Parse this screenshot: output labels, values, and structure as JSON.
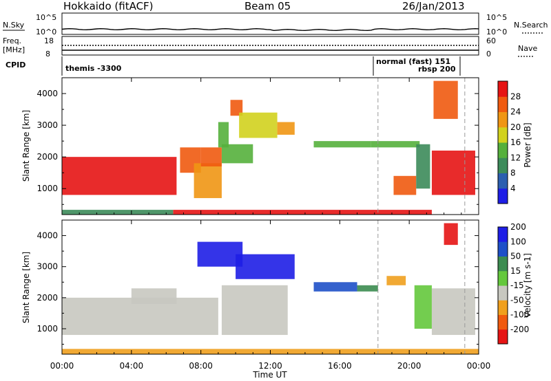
{
  "header": {
    "station": "Hokkaido (fitACF)",
    "beam": "Beam 05",
    "date": "26/Jan/2013"
  },
  "strip": {
    "nsky_label": "N.Sky",
    "nsky_scale_top": "10^5",
    "nsky_scale_bot": "10^0",
    "nsearch_label": "N.Search",
    "nsearch_scale_top": "10^5",
    "nsearch_scale_bot": "10^0",
    "freq_label_1": "Freq.",
    "freq_label_2": "[MHz]",
    "freq_scale_top": "18",
    "freq_scale_bot": "8",
    "nave_label": "Nave",
    "nave_scale_top": "60",
    "nave_scale_bot": "0",
    "cpid_label": "CPID",
    "cpid_mode_1": "themis -3300",
    "cpid_mode_2": "normal (fast) 151",
    "cpid_mode_3": "rbsp 200"
  },
  "x_axis": {
    "label": "Time UT",
    "ticks": [
      "00:00",
      "04:00",
      "08:00",
      "12:00",
      "16:00",
      "20:00",
      "00:00"
    ]
  },
  "colors": {
    "power": [
      "#1e1ee6",
      "#2b5fb0",
      "#3c8b5a",
      "#55b03c",
      "#d2d21e",
      "#f09614",
      "#f05a0f",
      "#e61414"
    ],
    "velocity": [
      "#e61414",
      "#f05a0f",
      "#f0a01e",
      "#c8c8c0",
      "#64c83c",
      "#3c8c50",
      "#1e50c8",
      "#1e1ee6"
    ]
  },
  "chart_data": [
    {
      "type": "heatmap",
      "title": "",
      "xlabel": "",
      "ylabel": "Slant Range [km]",
      "xlim": [
        0,
        24
      ],
      "ylim": [
        180,
        4500
      ],
      "y_ticks": [
        1000,
        2000,
        3000,
        4000
      ],
      "colorbar": {
        "label": "Power [dB]",
        "ticks": [
          4,
          8,
          12,
          16,
          20,
          24,
          28
        ],
        "range": [
          0,
          32
        ]
      },
      "regions": [
        {
          "x": [
            0.0,
            6.6
          ],
          "y": [
            800,
            2000
          ],
          "value": 28
        },
        {
          "x": [
            6.8,
            8.0
          ],
          "y": [
            1500,
            2300
          ],
          "value": 26
        },
        {
          "x": [
            7.6,
            9.2
          ],
          "y": [
            700,
            1800
          ],
          "value": 22
        },
        {
          "x": [
            8.0,
            9.2
          ],
          "y": [
            1700,
            2300
          ],
          "value": 26
        },
        {
          "x": [
            9.0,
            9.6
          ],
          "y": [
            2300,
            3100
          ],
          "value": 14
        },
        {
          "x": [
            9.7,
            10.4
          ],
          "y": [
            3300,
            3800
          ],
          "value": 25
        },
        {
          "x": [
            10.2,
            12.4
          ],
          "y": [
            2600,
            3400
          ],
          "value": 16
        },
        {
          "x": [
            12.4,
            13.4
          ],
          "y": [
            2700,
            3100
          ],
          "value": 20
        },
        {
          "x": [
            9.2,
            11.0
          ],
          "y": [
            1800,
            2400
          ],
          "value": 12
        },
        {
          "x": [
            14.5,
            17.8
          ],
          "y": [
            2300,
            2500
          ],
          "value": 12
        },
        {
          "x": [
            17.8,
            20.6
          ],
          "y": [
            2300,
            2500
          ],
          "value": 12
        },
        {
          "x": [
            19.1,
            20.4
          ],
          "y": [
            800,
            1400
          ],
          "value": 24
        },
        {
          "x": [
            20.4,
            21.2
          ],
          "y": [
            1000,
            2400
          ],
          "value": 8
        },
        {
          "x": [
            21.3,
            23.8
          ],
          "y": [
            800,
            2200
          ],
          "value": 28
        },
        {
          "x": [
            21.4,
            22.8
          ],
          "y": [
            3200,
            4400
          ],
          "value": 24
        },
        {
          "x": [
            6.4,
            21.3
          ],
          "y": [
            180,
            330
          ],
          "value": 28
        },
        {
          "x": [
            0.0,
            6.4
          ],
          "y": [
            180,
            330
          ],
          "value": 8
        }
      ]
    },
    {
      "type": "heatmap",
      "title": "",
      "xlabel": "Time UT",
      "ylabel": "Slant Range [km]",
      "xlim": [
        0,
        24
      ],
      "ylim": [
        180,
        4500
      ],
      "y_ticks": [
        1000,
        2000,
        3000,
        4000
      ],
      "colorbar": {
        "label": "Velocity [m s-1]",
        "ticks": [
          -200,
          -100,
          -50,
          -15,
          15,
          50,
          100,
          200
        ]
      },
      "regions": [
        {
          "x": [
            0.0,
            9.0
          ],
          "y": [
            800,
            2000
          ],
          "value": 0
        },
        {
          "x": [
            4.0,
            6.6
          ],
          "y": [
            1800,
            2300
          ],
          "value": 0
        },
        {
          "x": [
            9.2,
            13.0
          ],
          "y": [
            800,
            2400
          ],
          "value": 0
        },
        {
          "x": [
            7.8,
            10.4
          ],
          "y": [
            3000,
            3800
          ],
          "value": 220
        },
        {
          "x": [
            10.0,
            13.4
          ],
          "y": [
            2600,
            3400
          ],
          "value": 200
        },
        {
          "x": [
            14.5,
            17.0
          ],
          "y": [
            2200,
            2500
          ],
          "value": 150
        },
        {
          "x": [
            17.0,
            18.2
          ],
          "y": [
            2200,
            2400
          ],
          "value": 60
        },
        {
          "x": [
            18.7,
            19.8
          ],
          "y": [
            2400,
            2700
          ],
          "value": -70
        },
        {
          "x": [
            20.3,
            21.3
          ],
          "y": [
            1000,
            2400
          ],
          "value": 40
        },
        {
          "x": [
            21.3,
            23.8
          ],
          "y": [
            800,
            2300
          ],
          "value": 0
        },
        {
          "x": [
            22.0,
            22.8
          ],
          "y": [
            3700,
            4400
          ],
          "value": -200
        },
        {
          "x": [
            0.0,
            24.0
          ],
          "y": [
            180,
            350
          ],
          "value": -40
        }
      ]
    }
  ]
}
